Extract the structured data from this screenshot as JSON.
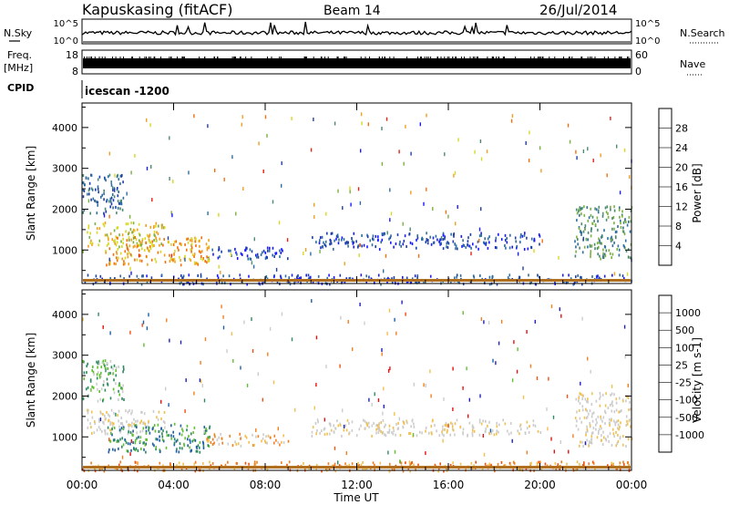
{
  "header": {
    "station": "Kapuskasing (fitACF)",
    "beam": "Beam 14",
    "date": "26/Jul/2014"
  },
  "top_panels": {
    "nsky_label": "N.Sky",
    "nsearch_label": "N.Search",
    "noise_ticks": [
      "10^5",
      "10^0"
    ],
    "freq_label_1": "Freq.",
    "freq_label_2": "[MHz]",
    "freq_ticks": [
      "18",
      "8"
    ],
    "nave_label": "Nave",
    "nave_ticks": [
      "60",
      "0"
    ],
    "cpid_label": "CPID",
    "cpid_value": "icescan -1200"
  },
  "colors": {
    "power": [
      "#1a1aff",
      "#1f3fa8",
      "#2e6ea0",
      "#4a8a70",
      "#7ab040",
      "#d8d820",
      "#f0a020",
      "#f07010",
      "#e82010"
    ],
    "velocity": [
      "#e81010",
      "#f05010",
      "#f08020",
      "#f0c050",
      "#cccccc",
      "#cccccc",
      "#60c030",
      "#2e8a60",
      "#1f5fa8",
      "#2020c0"
    ]
  },
  "chart_data": [
    {
      "type": "heatmap",
      "name": "power",
      "ylabel": "Slant Range [km]",
      "ylim": [
        180,
        4600
      ],
      "yticks": [
        1000,
        2000,
        3000,
        4000
      ],
      "xlim": [
        0,
        24
      ],
      "colorbar": {
        "label": "Power [dB]",
        "range": [
          0,
          32
        ],
        "ticks": [
          "4",
          "8",
          "12",
          "16",
          "20",
          "24",
          "28"
        ]
      },
      "blobs": [
        {
          "t0": 0.0,
          "t1": 1.8,
          "r0": 1900,
          "r1": 2900,
          "level": 2
        },
        {
          "t0": 0.2,
          "t1": 3.6,
          "r0": 1100,
          "r1": 1700,
          "level": 5
        },
        {
          "t0": 1.0,
          "t1": 5.6,
          "r0": 650,
          "r1": 1350,
          "level": 6
        },
        {
          "t0": 5.4,
          "t1": 9.0,
          "r0": 800,
          "r1": 1100,
          "level": 1
        },
        {
          "t0": 10.0,
          "t1": 20.0,
          "r0": 1050,
          "r1": 1450,
          "level": 1
        },
        {
          "t0": 21.5,
          "t1": 24.0,
          "r0": 800,
          "r1": 2100,
          "level": 3
        },
        {
          "t0": 0.0,
          "t1": 24.0,
          "r0": 190,
          "r1": 420,
          "level": 1
        }
      ]
    },
    {
      "type": "heatmap",
      "name": "velocity",
      "ylabel": "Slant Range [km]",
      "ylim": [
        180,
        4600
      ],
      "yticks": [
        1000,
        2000,
        3000,
        4000
      ],
      "xlim": [
        0,
        24
      ],
      "xticks": [
        "00:00",
        "04:00",
        "08:00",
        "12:00",
        "16:00",
        "20:00",
        "00:00"
      ],
      "xlabel": "Time UT",
      "colorbar": {
        "label": "Velocity [m s-1]",
        "ticks": [
          "-1000",
          "-500",
          "-100",
          "-25",
          "25",
          "100",
          "500",
          "1000"
        ]
      },
      "blobs": [
        {
          "t0": 0.0,
          "t1": 1.8,
          "r0": 1900,
          "r1": 2900,
          "level": 6
        },
        {
          "t0": 0.2,
          "t1": 3.6,
          "r0": 1100,
          "r1": 1700,
          "level": 4
        },
        {
          "t0": 1.0,
          "t1": 5.6,
          "r0": 650,
          "r1": 1350,
          "level": 7
        },
        {
          "t0": 5.4,
          "t1": 9.0,
          "r0": 800,
          "r1": 1100,
          "level": 3
        },
        {
          "t0": 10.0,
          "t1": 20.0,
          "r0": 1050,
          "r1": 1450,
          "level": 4
        },
        {
          "t0": 21.5,
          "t1": 24.0,
          "r0": 800,
          "r1": 2100,
          "level": 4
        },
        {
          "t0": 0.0,
          "t1": 24.0,
          "r0": 190,
          "r1": 420,
          "level": 2
        }
      ]
    }
  ]
}
